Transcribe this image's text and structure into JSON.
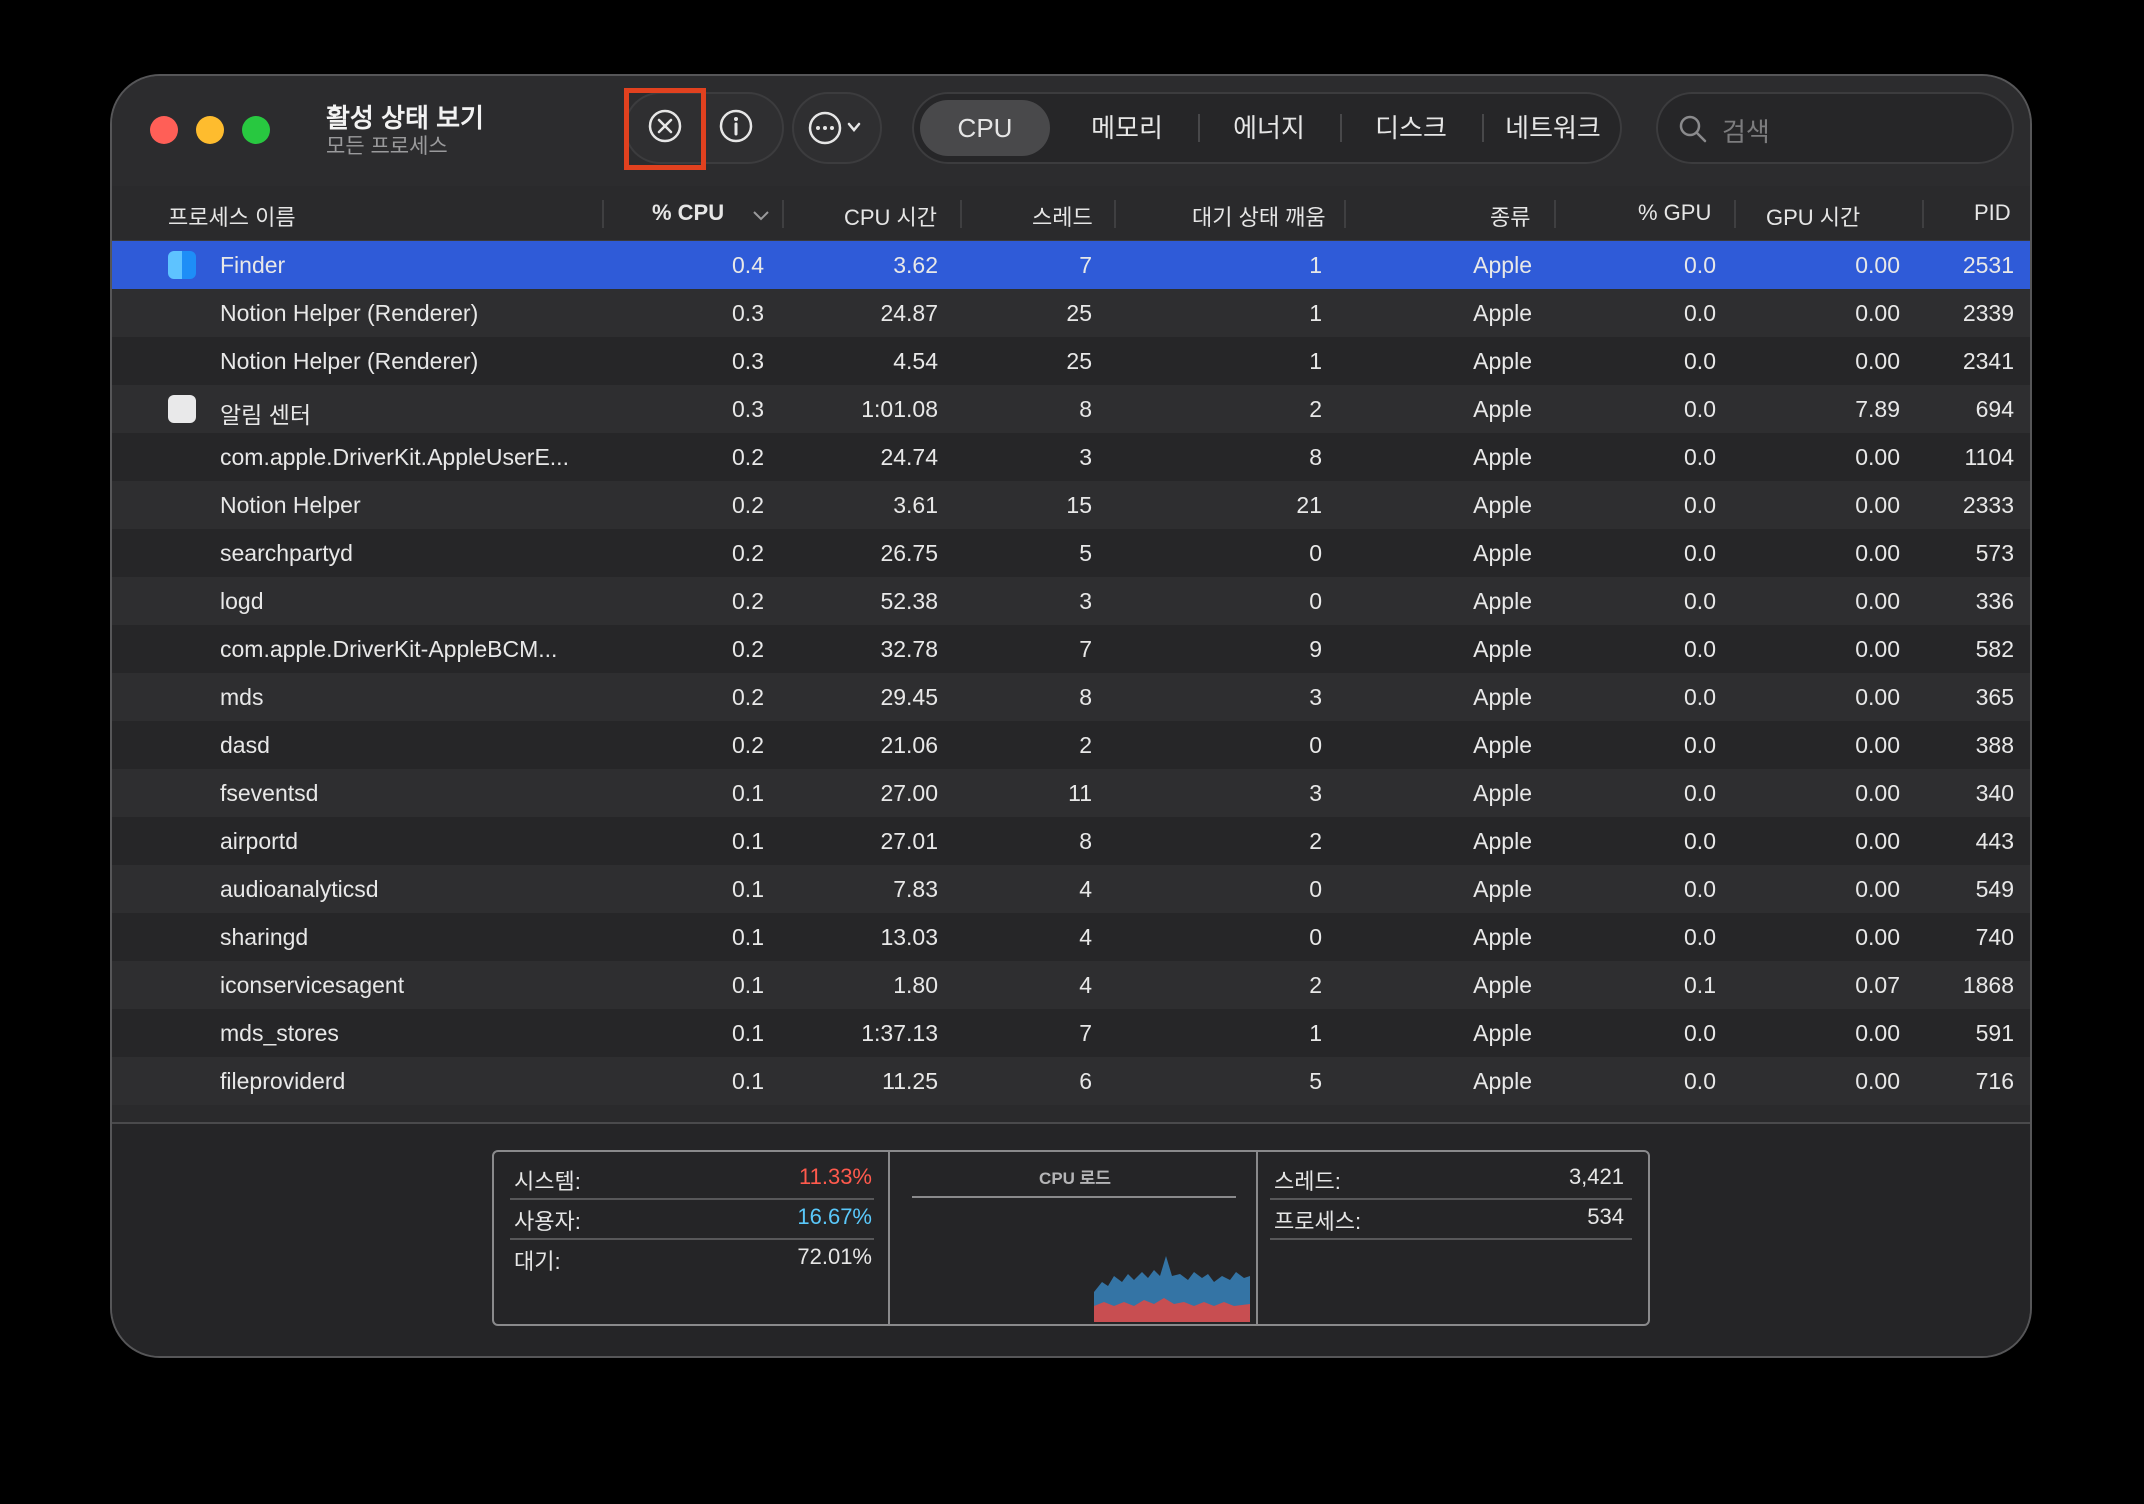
{
  "app": {
    "title": "활성 상태 보기",
    "subtitle": "모든 프로세스"
  },
  "toolbar": {
    "stop_icon": "x-circle-icon",
    "info_icon": "info-circle-icon",
    "more_icon": "ellipsis-circle-icon",
    "tabs": [
      {
        "label": "CPU",
        "active": true
      },
      {
        "label": "메모리",
        "active": false
      },
      {
        "label": "에너지",
        "active": false
      },
      {
        "label": "디스크",
        "active": false
      },
      {
        "label": "네트워크",
        "active": false
      }
    ],
    "search_placeholder": "검색"
  },
  "columns": [
    "프로세스 이름",
    "% CPU",
    "CPU 시간",
    "스레드",
    "대기 상태 깨움",
    "종류",
    "% GPU",
    "GPU 시간",
    "PID"
  ],
  "rows": [
    {
      "name": "Finder",
      "cpu": "0.4",
      "cpu_time": "3.62",
      "threads": "7",
      "wakes": "1",
      "kind": "Apple",
      "gpu": "0.0",
      "gpu_time": "0.00",
      "pid": "2531",
      "icon": "finder-icon",
      "selected": true
    },
    {
      "name": "Notion Helper (Renderer)",
      "cpu": "0.3",
      "cpu_time": "24.87",
      "threads": "25",
      "wakes": "1",
      "kind": "Apple",
      "gpu": "0.0",
      "gpu_time": "0.00",
      "pid": "2339"
    },
    {
      "name": "Notion Helper (Renderer)",
      "cpu": "0.3",
      "cpu_time": "4.54",
      "threads": "25",
      "wakes": "1",
      "kind": "Apple",
      "gpu": "0.0",
      "gpu_time": "0.00",
      "pid": "2341"
    },
    {
      "name": "알림 센터",
      "cpu": "0.3",
      "cpu_time": "1:01.08",
      "threads": "8",
      "wakes": "2",
      "kind": "Apple",
      "gpu": "0.0",
      "gpu_time": "7.89",
      "pid": "694",
      "icon": "notification-center-icon"
    },
    {
      "name": "com.apple.DriverKit.AppleUserE...",
      "cpu": "0.2",
      "cpu_time": "24.74",
      "threads": "3",
      "wakes": "8",
      "kind": "Apple",
      "gpu": "0.0",
      "gpu_time": "0.00",
      "pid": "1104"
    },
    {
      "name": "Notion Helper",
      "cpu": "0.2",
      "cpu_time": "3.61",
      "threads": "15",
      "wakes": "21",
      "kind": "Apple",
      "gpu": "0.0",
      "gpu_time": "0.00",
      "pid": "2333"
    },
    {
      "name": "searchpartyd",
      "cpu": "0.2",
      "cpu_time": "26.75",
      "threads": "5",
      "wakes": "0",
      "kind": "Apple",
      "gpu": "0.0",
      "gpu_time": "0.00",
      "pid": "573"
    },
    {
      "name": "logd",
      "cpu": "0.2",
      "cpu_time": "52.38",
      "threads": "3",
      "wakes": "0",
      "kind": "Apple",
      "gpu": "0.0",
      "gpu_time": "0.00",
      "pid": "336"
    },
    {
      "name": "com.apple.DriverKit-AppleBCM...",
      "cpu": "0.2",
      "cpu_time": "32.78",
      "threads": "7",
      "wakes": "9",
      "kind": "Apple",
      "gpu": "0.0",
      "gpu_time": "0.00",
      "pid": "582"
    },
    {
      "name": "mds",
      "cpu": "0.2",
      "cpu_time": "29.45",
      "threads": "8",
      "wakes": "3",
      "kind": "Apple",
      "gpu": "0.0",
      "gpu_time": "0.00",
      "pid": "365"
    },
    {
      "name": "dasd",
      "cpu": "0.2",
      "cpu_time": "21.06",
      "threads": "2",
      "wakes": "0",
      "kind": "Apple",
      "gpu": "0.0",
      "gpu_time": "0.00",
      "pid": "388"
    },
    {
      "name": "fseventsd",
      "cpu": "0.1",
      "cpu_time": "27.00",
      "threads": "11",
      "wakes": "3",
      "kind": "Apple",
      "gpu": "0.0",
      "gpu_time": "0.00",
      "pid": "340"
    },
    {
      "name": "airportd",
      "cpu": "0.1",
      "cpu_time": "27.01",
      "threads": "8",
      "wakes": "2",
      "kind": "Apple",
      "gpu": "0.0",
      "gpu_time": "0.00",
      "pid": "443"
    },
    {
      "name": "audioanalyticsd",
      "cpu": "0.1",
      "cpu_time": "7.83",
      "threads": "4",
      "wakes": "0",
      "kind": "Apple",
      "gpu": "0.0",
      "gpu_time": "0.00",
      "pid": "549"
    },
    {
      "name": "sharingd",
      "cpu": "0.1",
      "cpu_time": "13.03",
      "threads": "4",
      "wakes": "0",
      "kind": "Apple",
      "gpu": "0.0",
      "gpu_time": "0.00",
      "pid": "740"
    },
    {
      "name": "iconservicesagent",
      "cpu": "0.1",
      "cpu_time": "1.80",
      "threads": "4",
      "wakes": "2",
      "kind": "Apple",
      "gpu": "0.1",
      "gpu_time": "0.07",
      "pid": "1868"
    },
    {
      "name": "mds_stores",
      "cpu": "0.1",
      "cpu_time": "1:37.13",
      "threads": "7",
      "wakes": "1",
      "kind": "Apple",
      "gpu": "0.0",
      "gpu_time": "0.00",
      "pid": "591"
    },
    {
      "name": "fileproviderd",
      "cpu": "0.1",
      "cpu_time": "11.25",
      "threads": "6",
      "wakes": "5",
      "kind": "Apple",
      "gpu": "0.0",
      "gpu_time": "0.00",
      "pid": "716"
    }
  ],
  "summary": {
    "system_label": "시스템:",
    "system_value": "11.33%",
    "system_color": "#ff5a4d",
    "user_label": "사용자:",
    "user_value": "16.67%",
    "user_color": "#5ac8fa",
    "idle_label": "대기:",
    "idle_value": "72.01%",
    "cpu_load_title": "CPU 로드",
    "threads_label": "스레드:",
    "threads_value": "3,421",
    "processes_label": "프로세스:",
    "processes_value": "534"
  }
}
